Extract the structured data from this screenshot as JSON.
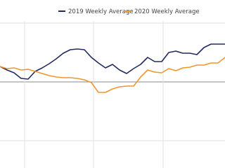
{
  "chart_data": {
    "type": "line",
    "x": [
      0,
      1,
      2,
      3,
      4,
      5,
      6,
      7,
      8,
      9,
      10,
      11,
      12,
      13,
      14,
      15,
      16,
      17,
      18,
      19,
      20,
      21,
      22,
      23,
      24,
      25,
      26,
      27,
      28,
      29,
      30,
      31,
      32
    ],
    "series": [
      {
        "name": "2019 Weekly Average",
        "color": "#232b5c",
        "values": [
          22,
          17,
          13,
          5,
          4,
          15,
          20,
          26,
          33,
          41,
          46,
          47,
          46,
          35,
          27,
          20,
          25,
          17,
          12,
          19,
          25,
          35,
          29,
          29,
          42,
          44,
          41,
          41,
          39,
          49,
          54,
          54,
          54
        ]
      },
      {
        "name": "2020 Weekly Average",
        "color": "#f0962f",
        "values": [
          22,
          19,
          20,
          17,
          18,
          15,
          12,
          9,
          7,
          6,
          6,
          5,
          3,
          -1,
          -15,
          -15,
          -10,
          -7,
          -6,
          -6,
          7,
          17,
          14,
          13,
          19,
          16,
          20,
          21,
          24,
          24,
          27,
          27,
          35
        ]
      }
    ],
    "xlim": [
      0,
      32
    ],
    "ylim": [
      -123,
      117
    ],
    "xticks": [
      3.5,
      13.3,
      23.2
    ],
    "yticks": [
      -84,
      0,
      84
    ],
    "grid": true,
    "legend": "top"
  }
}
